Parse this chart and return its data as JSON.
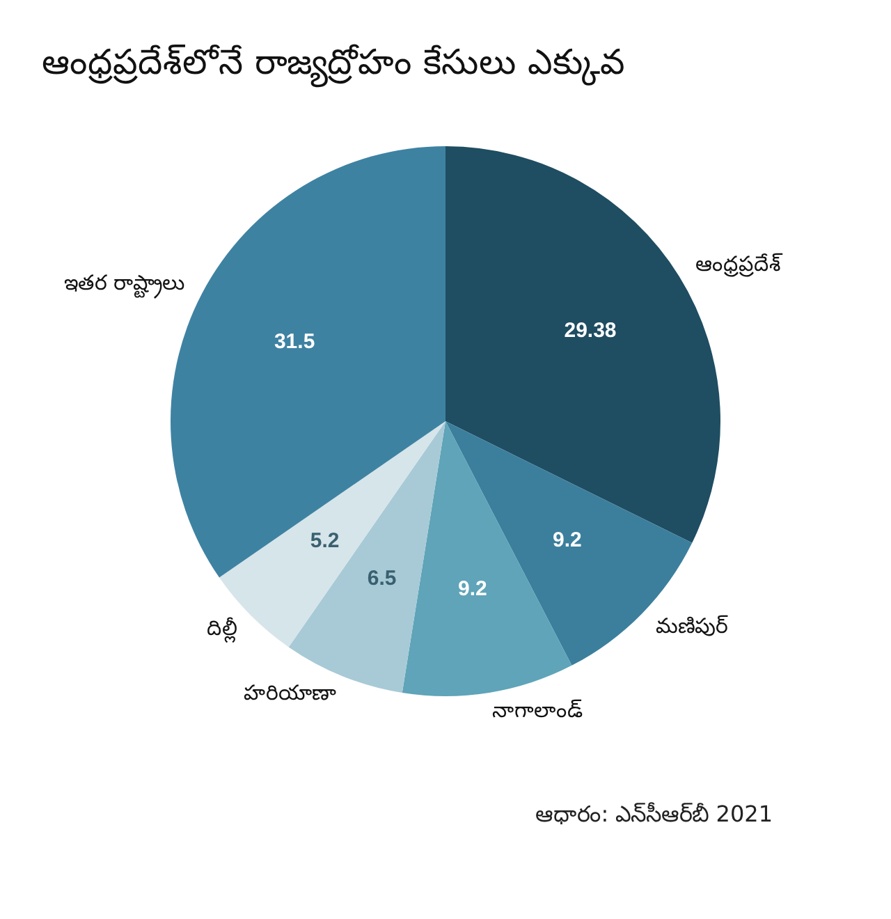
{
  "chart_data": {
    "type": "pie",
    "title": "ఆంధ్రప్రదేశ్‌లోనే రాజ్యద్రోహం కేసులు ఎక్కువ",
    "categories": [
      "ఆంధ్రప్రదేశ్",
      "మణిపుర్",
      "నాగాలాండ్",
      "హరియాణా",
      "దిల్లీ",
      "ఇతర రాష్ట్రాలు"
    ],
    "values": [
      29.38,
      9.2,
      9.2,
      6.5,
      5.2,
      31.5
    ],
    "colors": [
      "#1f4d62",
      "#3b7f9d",
      "#5fa4b8",
      "#a7cad6",
      "#d6e5ea",
      "#3e82a2"
    ],
    "data_labels": true,
    "legend": false,
    "annotations": [
      "ఆధారం: ఎన్‌సీఆర్‌బీ 2021"
    ]
  }
}
